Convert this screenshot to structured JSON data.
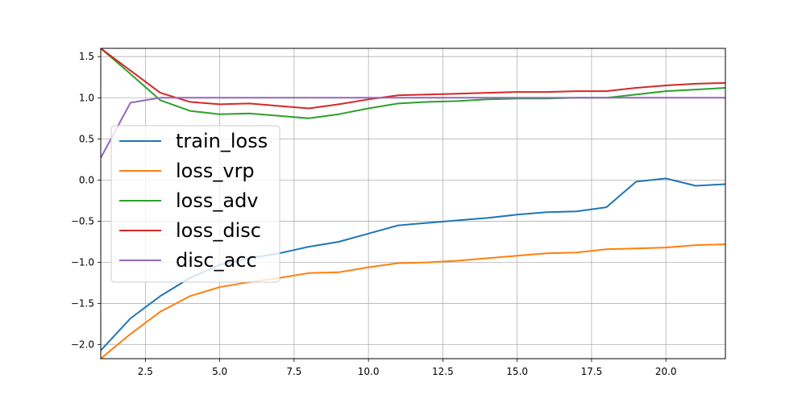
{
  "chart_data": {
    "type": "line",
    "title": "",
    "xlabel": "",
    "ylabel": "",
    "xlim": [
      1,
      22
    ],
    "ylim": [
      -2.17,
      1.6
    ],
    "grid": true,
    "legend_position": "center-left",
    "x": [
      1,
      2,
      3,
      4,
      5,
      6,
      7,
      8,
      9,
      10,
      11,
      12,
      13,
      14,
      15,
      16,
      17,
      18,
      19,
      20,
      21,
      22
    ],
    "x_ticks": [
      2.5,
      5.0,
      7.5,
      10.0,
      12.5,
      15.0,
      17.5,
      20.0
    ],
    "x_tick_labels": [
      "2.5",
      "5.0",
      "7.5",
      "10.0",
      "12.5",
      "15.0",
      "17.5",
      "20.0"
    ],
    "y_ticks": [
      1.5,
      1.0,
      0.5,
      0.0,
      -0.5,
      -1.0,
      -1.5,
      -2.0
    ],
    "y_tick_labels": [
      "1.5",
      "1.0",
      "0.5",
      "0.0",
      "−0.5",
      "−1.0",
      "−1.5",
      "−2.0"
    ],
    "series": [
      {
        "name": "train_loss",
        "color": "#1f77b4",
        "values": [
          -2.07,
          -1.68,
          -1.41,
          -1.19,
          -1.03,
          -0.95,
          -0.89,
          -0.81,
          -0.75,
          -0.65,
          -0.55,
          -0.52,
          -0.49,
          -0.46,
          -0.42,
          -0.39,
          -0.38,
          -0.33,
          -0.02,
          0.02,
          -0.07,
          -0.05
        ]
      },
      {
        "name": "loss_vrp",
        "color": "#ff7f0e",
        "values": [
          -2.17,
          -1.87,
          -1.6,
          -1.41,
          -1.3,
          -1.24,
          -1.19,
          -1.13,
          -1.12,
          -1.06,
          -1.01,
          -1.0,
          -0.98,
          -0.95,
          -0.92,
          -0.89,
          -0.88,
          -0.84,
          -0.83,
          -0.82,
          -0.79,
          -0.78
        ]
      },
      {
        "name": "loss_adv",
        "color": "#2ca02c",
        "values": [
          1.6,
          1.29,
          0.97,
          0.84,
          0.8,
          0.81,
          0.78,
          0.75,
          0.8,
          0.87,
          0.93,
          0.95,
          0.96,
          0.98,
          0.99,
          0.99,
          1.0,
          1.0,
          1.04,
          1.08,
          1.1,
          1.12
        ]
      },
      {
        "name": "loss_disc",
        "color": "#d62728",
        "values": [
          1.6,
          1.33,
          1.06,
          0.95,
          0.92,
          0.93,
          0.9,
          0.87,
          0.92,
          0.98,
          1.03,
          1.04,
          1.05,
          1.06,
          1.07,
          1.07,
          1.08,
          1.08,
          1.12,
          1.15,
          1.17,
          1.18
        ]
      },
      {
        "name": "disc_acc",
        "color": "#9467bd",
        "values": [
          0.27,
          0.94,
          1.0,
          1.0,
          1.0,
          1.0,
          1.0,
          1.0,
          1.0,
          1.0,
          1.0,
          1.0,
          1.0,
          1.0,
          1.0,
          1.0,
          1.0,
          1.0,
          1.0,
          1.0,
          1.0,
          1.0
        ]
      }
    ]
  }
}
